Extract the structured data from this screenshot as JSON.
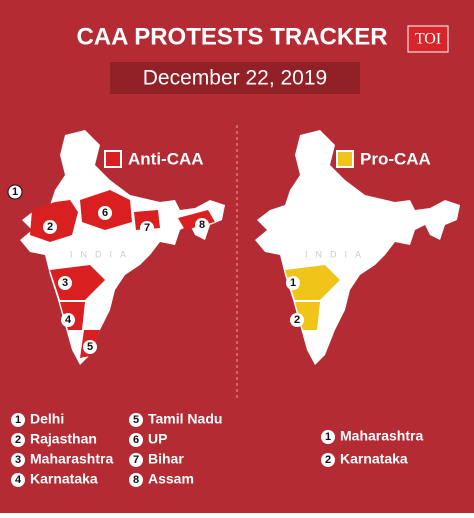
{
  "header": {
    "title": "CAA PROTESTS TRACKER",
    "logo": "TOI",
    "date": "December 22, 2019"
  },
  "watermark": "INDIA",
  "anti_caa": {
    "legend": "Anti-CAA",
    "items": [
      {
        "number": "1",
        "name": "Delhi"
      },
      {
        "number": "2",
        "name": "Rajasthan"
      },
      {
        "number": "3",
        "name": "Maharashtra"
      },
      {
        "number": "4",
        "name": "Karnataka"
      },
      {
        "number": "5",
        "name": "Tamil Nadu"
      },
      {
        "number": "6",
        "name": "UP"
      },
      {
        "number": "7",
        "name": "Bihar"
      },
      {
        "number": "8",
        "name": "Assam"
      }
    ]
  },
  "pro_caa": {
    "legend": "Pro-CAA",
    "items": [
      {
        "number": "1",
        "name": "Maharashtra"
      },
      {
        "number": "2",
        "name": "Karnataka"
      }
    ]
  }
}
